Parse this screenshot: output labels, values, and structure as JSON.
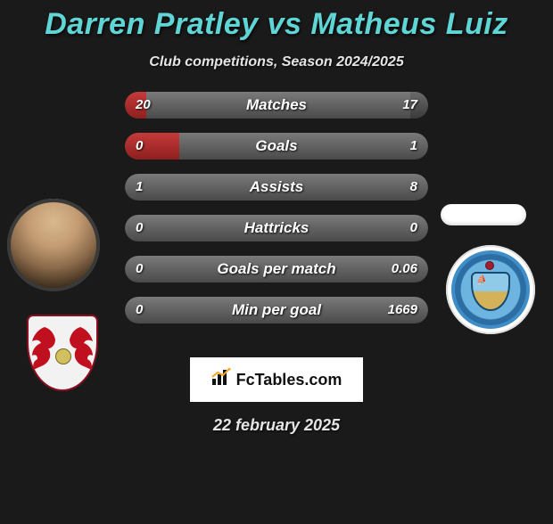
{
  "title": "Darren Pratley vs Matheus Luiz",
  "subtitle": "Club competitions, Season 2024/2025",
  "date": "22 february 2025",
  "fctables_label": "FcTables.com",
  "colors": {
    "title": "#5fd5d5",
    "bar_bg_gradient_top": "#7a7a7a",
    "bar_bg_gradient_bottom": "#4a4a4a",
    "bar_left_fill_top": "#c53a3a",
    "bar_left_fill_bottom": "#8f1f1f",
    "bar_right_fill_top": "#6a6a6a",
    "bar_right_fill_bottom": "#3a3a3a",
    "page_bg": "#1a1a1a",
    "fctables_accent": "#f5a623"
  },
  "bars": [
    {
      "label": "Matches",
      "left": "20",
      "right": "17",
      "left_pct": 7,
      "right_pct": 6
    },
    {
      "label": "Goals",
      "left": "0",
      "right": "1",
      "left_pct": 18,
      "right_pct": 0
    },
    {
      "label": "Assists",
      "left": "1",
      "right": "8",
      "left_pct": 0,
      "right_pct": 0
    },
    {
      "label": "Hattricks",
      "left": "0",
      "right": "0",
      "left_pct": 0,
      "right_pct": 0
    },
    {
      "label": "Goals per match",
      "left": "0",
      "right": "0.06",
      "left_pct": 0,
      "right_pct": 0
    },
    {
      "label": "Min per goal",
      "left": "0",
      "right": "1669",
      "left_pct": 0,
      "right_pct": 0
    }
  ],
  "left_club": "Leyton Orient",
  "right_club": "Manchester City"
}
